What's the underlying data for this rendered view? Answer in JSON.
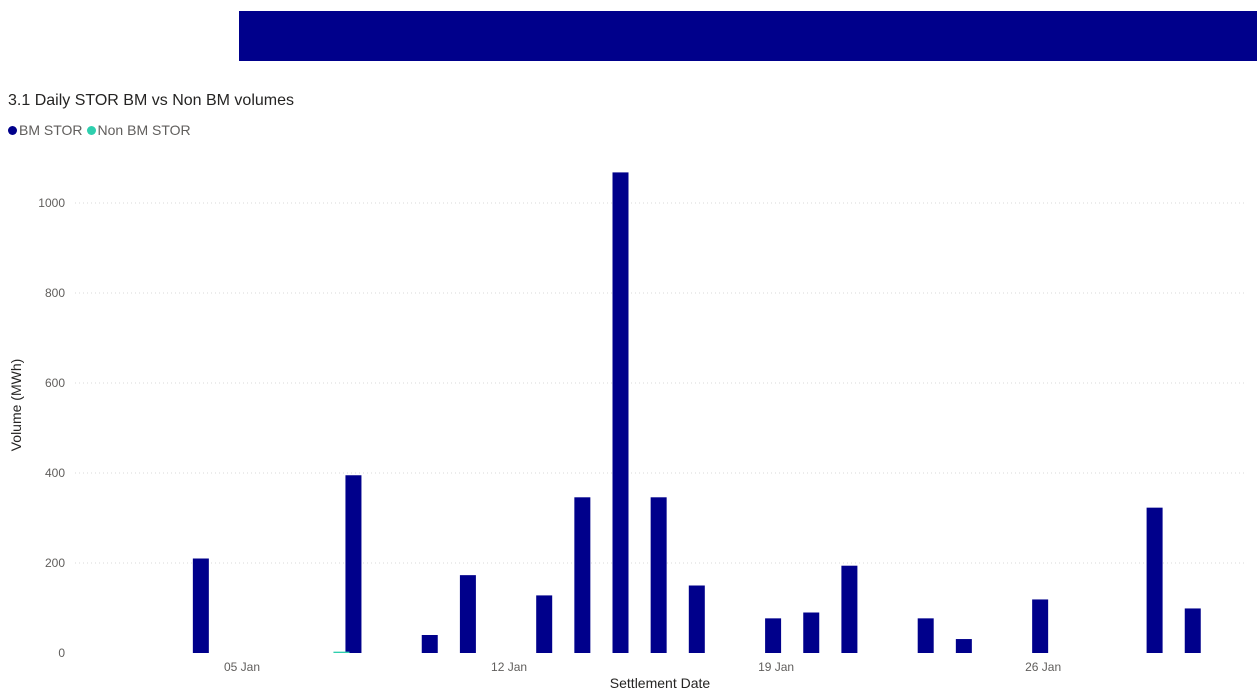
{
  "colors": {
    "banner": "#00008b",
    "bm_stor": "#00008b",
    "non_bm_stor": "#2ecfae",
    "gridline": "#d9d9d9"
  },
  "chart_data": {
    "type": "bar",
    "title": "3.1 Daily STOR BM vs Non BM volumes",
    "xlabel": "Settlement Date",
    "ylabel": "Volume (MWh)",
    "ylim": [
      0,
      1070
    ],
    "yticks": [
      0,
      200,
      400,
      600,
      800,
      1000
    ],
    "grid": true,
    "legend_position": "top-left",
    "x_tick_labels": [
      {
        "date": "2020-01-05",
        "label": "05 Jan"
      },
      {
        "date": "2020-01-12",
        "label": "12 Jan"
      },
      {
        "date": "2020-01-19",
        "label": "19 Jan"
      },
      {
        "date": "2020-01-26",
        "label": "26 Jan"
      }
    ],
    "series": [
      {
        "name": "BM STOR",
        "color": "#00008b",
        "points": [
          {
            "date": "2020-01-04",
            "value": 210
          },
          {
            "date": "2020-01-08",
            "value": 395
          },
          {
            "date": "2020-01-10",
            "value": 40
          },
          {
            "date": "2020-01-11",
            "value": 173
          },
          {
            "date": "2020-01-13",
            "value": 128
          },
          {
            "date": "2020-01-14",
            "value": 346
          },
          {
            "date": "2020-01-15",
            "value": 1068
          },
          {
            "date": "2020-01-16",
            "value": 346
          },
          {
            "date": "2020-01-17",
            "value": 150
          },
          {
            "date": "2020-01-19",
            "value": 77
          },
          {
            "date": "2020-01-20",
            "value": 90
          },
          {
            "date": "2020-01-21",
            "value": 194
          },
          {
            "date": "2020-01-23",
            "value": 77
          },
          {
            "date": "2020-01-24",
            "value": 31
          },
          {
            "date": "2020-01-26",
            "value": 119
          },
          {
            "date": "2020-01-29",
            "value": 323
          },
          {
            "date": "2020-01-30",
            "value": 99
          }
        ]
      },
      {
        "name": "Non BM STOR",
        "color": "#2ecfae",
        "points": [
          {
            "date": "2020-01-08",
            "value": 3
          }
        ]
      }
    ]
  }
}
